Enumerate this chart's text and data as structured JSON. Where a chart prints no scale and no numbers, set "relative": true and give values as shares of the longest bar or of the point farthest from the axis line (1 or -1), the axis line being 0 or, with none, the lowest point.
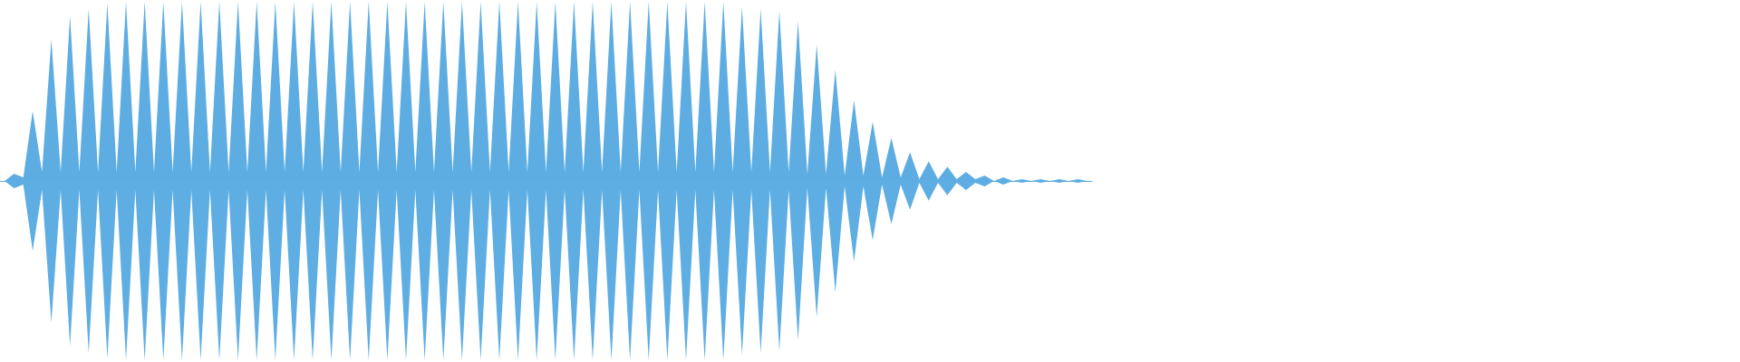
{
  "chart_data": {
    "type": "area",
    "relative": true,
    "categories": [
      null,
      null,
      null,
      null,
      null,
      null,
      null,
      null,
      null,
      null,
      null,
      null,
      null,
      null,
      null,
      null,
      null,
      null,
      null,
      null,
      null,
      null,
      null,
      null,
      null,
      null,
      null,
      null,
      null,
      null,
      null,
      null,
      null,
      null,
      null,
      null,
      null,
      null,
      null,
      null,
      null,
      null,
      null,
      null,
      null,
      null,
      null,
      null,
      null,
      null,
      null,
      null,
      null,
      null,
      null,
      null,
      null,
      null,
      null,
      null,
      null,
      null,
      null,
      null,
      null,
      null,
      null,
      null,
      null,
      null,
      null,
      null,
      null,
      null,
      null,
      null,
      null,
      null,
      null,
      null,
      null,
      null,
      null,
      null,
      null,
      null,
      null,
      null,
      null,
      null,
      null,
      null,
      null,
      null,
      null,
      null,
      null,
      null,
      null,
      null,
      null,
      null,
      null,
      null,
      null,
      null,
      null,
      null,
      null,
      null,
      null,
      null,
      null,
      null,
      null,
      null,
      null
    ],
    "series": [
      {
        "color": "#5dade2",
        "values": [
          0,
          0.04,
          0.02,
          0.39,
          0.05,
          0.79,
          0.05,
          0.92,
          0.05,
          0.96,
          0.05,
          0.99,
          0.05,
          1,
          0.05,
          1,
          0.05,
          1,
          0.05,
          1,
          0.05,
          1,
          0.05,
          1,
          0.05,
          1,
          0.05,
          1,
          0.05,
          1,
          0.05,
          1,
          0.05,
          1,
          0.05,
          1,
          0.05,
          1,
          0.05,
          1,
          0.05,
          1,
          0.05,
          1,
          0.05,
          1,
          0.05,
          1,
          0.05,
          1,
          0.05,
          1,
          0.05,
          1,
          0.05,
          1,
          0.05,
          1,
          0.05,
          1,
          0.05,
          1,
          0.05,
          1,
          0.05,
          1,
          0.05,
          1,
          0.05,
          1,
          0.05,
          1,
          0.05,
          1,
          0.05,
          1,
          0.05,
          1,
          0.05,
          0.97,
          0.05,
          0.96,
          0.05,
          0.95,
          0.05,
          0.89,
          0.04,
          0.76,
          0.04,
          0.62,
          0.03,
          0.45,
          0.03,
          0.33,
          0.02,
          0.24,
          0.02,
          0.16,
          0.01,
          0.11,
          0.01,
          0.08,
          0.01,
          0.05,
          0.01,
          0.03,
          0,
          0.02,
          0,
          0.01,
          0,
          0.01,
          0,
          0.01,
          0,
          0.01,
          0
        ]
      },
      {
        "color": "#5eaee3",
        "values": [
          0,
          -0.04,
          -0.02,
          -0.39,
          -0.05,
          -0.79,
          -0.05,
          -0.92,
          -0.05,
          -0.96,
          -0.05,
          -0.99,
          -0.05,
          -1,
          -0.05,
          -1,
          -0.05,
          -1,
          -0.05,
          -1,
          -0.05,
          -1,
          -0.05,
          -1,
          -0.05,
          -1,
          -0.05,
          -1,
          -0.05,
          -1,
          -0.05,
          -1,
          -0.05,
          -1,
          -0.05,
          -1,
          -0.05,
          -1,
          -0.05,
          -1,
          -0.05,
          -1,
          -0.05,
          -1,
          -0.05,
          -1,
          -0.05,
          -1,
          -0.05,
          -1,
          -0.05,
          -1,
          -0.05,
          -1,
          -0.05,
          -1,
          -0.05,
          -1,
          -0.05,
          -1,
          -0.05,
          -1,
          -0.05,
          -1,
          -0.05,
          -1,
          -0.05,
          -1,
          -0.05,
          -1,
          -0.05,
          -1,
          -0.05,
          -1,
          -0.05,
          -1,
          -0.05,
          -1,
          -0.05,
          -0.97,
          -0.05,
          -0.96,
          -0.05,
          -0.95,
          -0.05,
          -0.89,
          -0.04,
          -0.76,
          -0.04,
          -0.62,
          -0.03,
          -0.45,
          -0.03,
          -0.33,
          -0.02,
          -0.24,
          -0.02,
          -0.16,
          -0.01,
          -0.11,
          -0.01,
          -0.08,
          -0.01,
          -0.05,
          -0.01,
          -0.03,
          0,
          -0.02,
          0,
          -0.01,
          0,
          -0.01,
          0,
          -0.01,
          0,
          -0.01,
          0
        ]
      }
    ]
  }
}
